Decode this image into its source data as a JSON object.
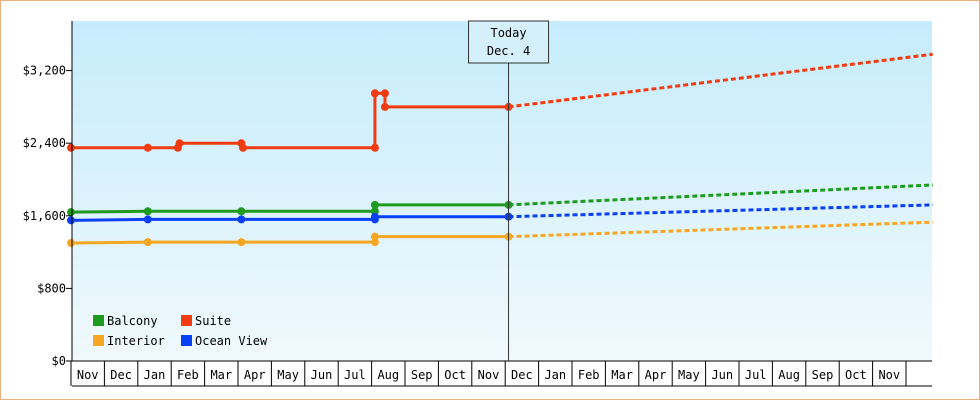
{
  "chart_data": {
    "type": "line",
    "title": "",
    "xlabel": "",
    "ylabel": "",
    "ylim": [
      0,
      3200
    ],
    "y_ticks": [
      "$0",
      "$800",
      "$1,600",
      "$2,400",
      "$3,200"
    ],
    "y_tick_values": [
      0,
      800,
      1600,
      2400,
      3200
    ],
    "months": [
      "Nov",
      "Dec",
      "Jan",
      "Feb",
      "Mar",
      "Apr",
      "May",
      "Jun",
      "Jul",
      "Aug",
      "Sep",
      "Oct",
      "Nov",
      "Dec",
      "Jan",
      "Feb",
      "Mar",
      "Apr",
      "May",
      "Jun",
      "Jul",
      "Aug",
      "Sep",
      "Oct",
      "Nov"
    ],
    "today_marker": {
      "line1": "Today",
      "line2": "Dec. 4",
      "month_index": 13.1
    },
    "grid": false,
    "legend_placement": "bottom-left",
    "series": [
      {
        "name": "Balcony",
        "color": "#1f9a1f",
        "history": [
          [
            0,
            1640
          ],
          [
            2.3,
            1650
          ],
          [
            5.1,
            1650
          ],
          [
            9.1,
            1650
          ],
          [
            9.1,
            1720
          ],
          [
            13.1,
            1720
          ]
        ],
        "markers": [
          [
            0,
            1640
          ],
          [
            2.3,
            1650
          ],
          [
            5.1,
            1650
          ],
          [
            9.1,
            1650
          ],
          [
            9.1,
            1720
          ],
          [
            13.1,
            1720
          ]
        ],
        "forecast": [
          [
            13.1,
            1720
          ],
          [
            25.8,
            1940
          ]
        ]
      },
      {
        "name": "Suite",
        "color": "#f03c10",
        "history": [
          [
            0,
            2350
          ],
          [
            2.3,
            2350
          ],
          [
            3.2,
            2350
          ],
          [
            3.2,
            2400
          ],
          [
            5.1,
            2400
          ],
          [
            5.1,
            2350
          ],
          [
            9.1,
            2350
          ],
          [
            9.1,
            2950
          ],
          [
            9.4,
            2950
          ],
          [
            9.4,
            2800
          ],
          [
            13.1,
            2800
          ]
        ],
        "markers": [
          [
            0,
            2350
          ],
          [
            2.3,
            2350
          ],
          [
            3.2,
            2350
          ],
          [
            3.25,
            2400
          ],
          [
            5.1,
            2400
          ],
          [
            5.15,
            2350
          ],
          [
            9.1,
            2350
          ],
          [
            9.1,
            2950
          ],
          [
            9.4,
            2950
          ],
          [
            9.4,
            2800
          ],
          [
            13.1,
            2800
          ]
        ],
        "forecast": [
          [
            13.1,
            2800
          ],
          [
            25.8,
            3380
          ]
        ]
      },
      {
        "name": "Interior",
        "color": "#f5a623",
        "history": [
          [
            0,
            1300
          ],
          [
            2.3,
            1310
          ],
          [
            5.1,
            1310
          ],
          [
            9.1,
            1310
          ],
          [
            9.1,
            1370
          ],
          [
            13.1,
            1370
          ]
        ],
        "markers": [
          [
            0,
            1300
          ],
          [
            2.3,
            1310
          ],
          [
            5.1,
            1310
          ],
          [
            9.1,
            1310
          ],
          [
            9.1,
            1370
          ],
          [
            13.1,
            1370
          ]
        ],
        "forecast": [
          [
            13.1,
            1370
          ],
          [
            25.8,
            1530
          ]
        ]
      },
      {
        "name": "Ocean View",
        "color": "#0a3ff5",
        "history": [
          [
            0,
            1550
          ],
          [
            2.3,
            1560
          ],
          [
            5.1,
            1560
          ],
          [
            9.1,
            1560
          ],
          [
            9.1,
            1590
          ],
          [
            13.1,
            1590
          ]
        ],
        "markers": [
          [
            0,
            1550
          ],
          [
            2.3,
            1560
          ],
          [
            5.1,
            1560
          ],
          [
            9.1,
            1560
          ],
          [
            9.1,
            1590
          ],
          [
            13.1,
            1590
          ]
        ],
        "forecast": [
          [
            13.1,
            1590
          ],
          [
            25.8,
            1720
          ]
        ]
      }
    ]
  }
}
